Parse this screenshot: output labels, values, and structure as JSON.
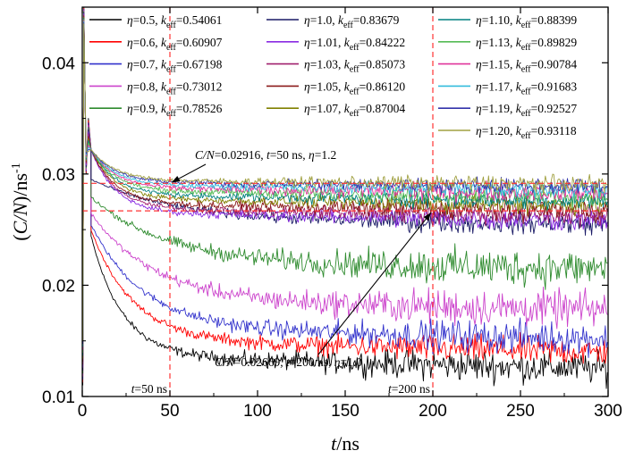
{
  "chart_data": {
    "type": "line",
    "xlabel": {
      "var": "t",
      "unit": "/ns"
    },
    "ylabel": {
      "open": "(",
      "var": "C/N",
      "close": ")/ns",
      "sup": "-1"
    },
    "xlim": [
      0,
      300
    ],
    "ylim": [
      0.01,
      0.045
    ],
    "x_ticks": [
      "0",
      "50",
      "100",
      "150",
      "200",
      "250",
      "300"
    ],
    "y_ticks": [
      "0.01",
      "0.02",
      "0.03",
      "0.04"
    ],
    "y_tick_values": [
      0.01,
      0.02,
      0.03,
      0.04
    ],
    "x_tick_values": [
      0,
      50,
      100,
      150,
      200,
      250,
      300
    ],
    "grid": false,
    "legend_position": "top",
    "series": [
      {
        "eta": "0.5",
        "keff": "0.54061",
        "color": "#000000",
        "final": 0.0125,
        "noise": 0.0012
      },
      {
        "eta": "0.6",
        "keff": "0.60907",
        "color": "#ff0000",
        "final": 0.014,
        "noise": 0.0011
      },
      {
        "eta": "0.7",
        "keff": "0.67198",
        "color": "#3333cc",
        "final": 0.0152,
        "noise": 0.0012
      },
      {
        "eta": "0.8",
        "keff": "0.73012",
        "color": "#cc44cc",
        "final": 0.0178,
        "noise": 0.0014
      },
      {
        "eta": "0.9",
        "keff": "0.78526",
        "color": "#2e8b2e",
        "final": 0.0215,
        "noise": 0.0014
      },
      {
        "eta": "1.0",
        "keff": "0.83679",
        "color": "#1a1a66",
        "final": 0.0255,
        "noise": 0.0008
      },
      {
        "eta": "1.01",
        "keff": "0.84222",
        "color": "#8a2be2",
        "final": 0.0258,
        "noise": 0.0008
      },
      {
        "eta": "1.03",
        "keff": "0.85073",
        "color": "#a0206e",
        "final": 0.0262,
        "noise": 0.0008
      },
      {
        "eta": "1.05",
        "keff": "0.86120",
        "color": "#8b1a1a",
        "final": 0.0267,
        "noise": 0.0008
      },
      {
        "eta": "1.07",
        "keff": "0.87004",
        "color": "#808000",
        "final": 0.0272,
        "noise": 0.0007
      },
      {
        "eta": "1.10",
        "keff": "0.88399",
        "color": "#008080",
        "final": 0.0276,
        "noise": 0.0007
      },
      {
        "eta": "1.13",
        "keff": "0.89829",
        "color": "#55bb55",
        "final": 0.028,
        "noise": 0.0007
      },
      {
        "eta": "1.15",
        "keff": "0.90784",
        "color": "#e0359b",
        "final": 0.0283,
        "noise": 0.0007
      },
      {
        "eta": "1.17",
        "keff": "0.91683",
        "color": "#33bbdd",
        "final": 0.0286,
        "noise": 0.0006
      },
      {
        "eta": "1.19",
        "keff": "0.92527",
        "color": "#3333aa",
        "final": 0.0289,
        "noise": 0.0006
      },
      {
        "eta": "1.20",
        "keff": "0.93118",
        "color": "#a0a040",
        "final": 0.0291,
        "noise": 0.0006
      }
    ],
    "reference_lines": {
      "horizontal": [
        0.02916,
        0.02669
      ],
      "vertical": [
        50,
        200
      ],
      "color": "#ff3333"
    },
    "annotations": [
      {
        "id": "anno-upper",
        "pre": "C/N",
        "mid1": "=0.02916, ",
        "t": "t",
        "mid2": "=50 ns, ",
        "eta": "η",
        "post": "=1.2",
        "target": [
          50,
          0.02916
        ]
      },
      {
        "id": "anno-lower",
        "pre": "C/N",
        "mid1": "=0.02669, ",
        "t": "t",
        "mid2": "=200 ns, ",
        "eta": "η",
        "post": "=1.0",
        "target": [
          200,
          0.02669
        ]
      }
    ],
    "vline_labels": [
      {
        "t": "t",
        "text": "=50 ns",
        "x": 50
      },
      {
        "t": "t",
        "text": "=200 ns",
        "x": 200
      }
    ],
    "legend_symbols": {
      "eta": "η",
      "k": "k",
      "sub": "eff"
    }
  }
}
